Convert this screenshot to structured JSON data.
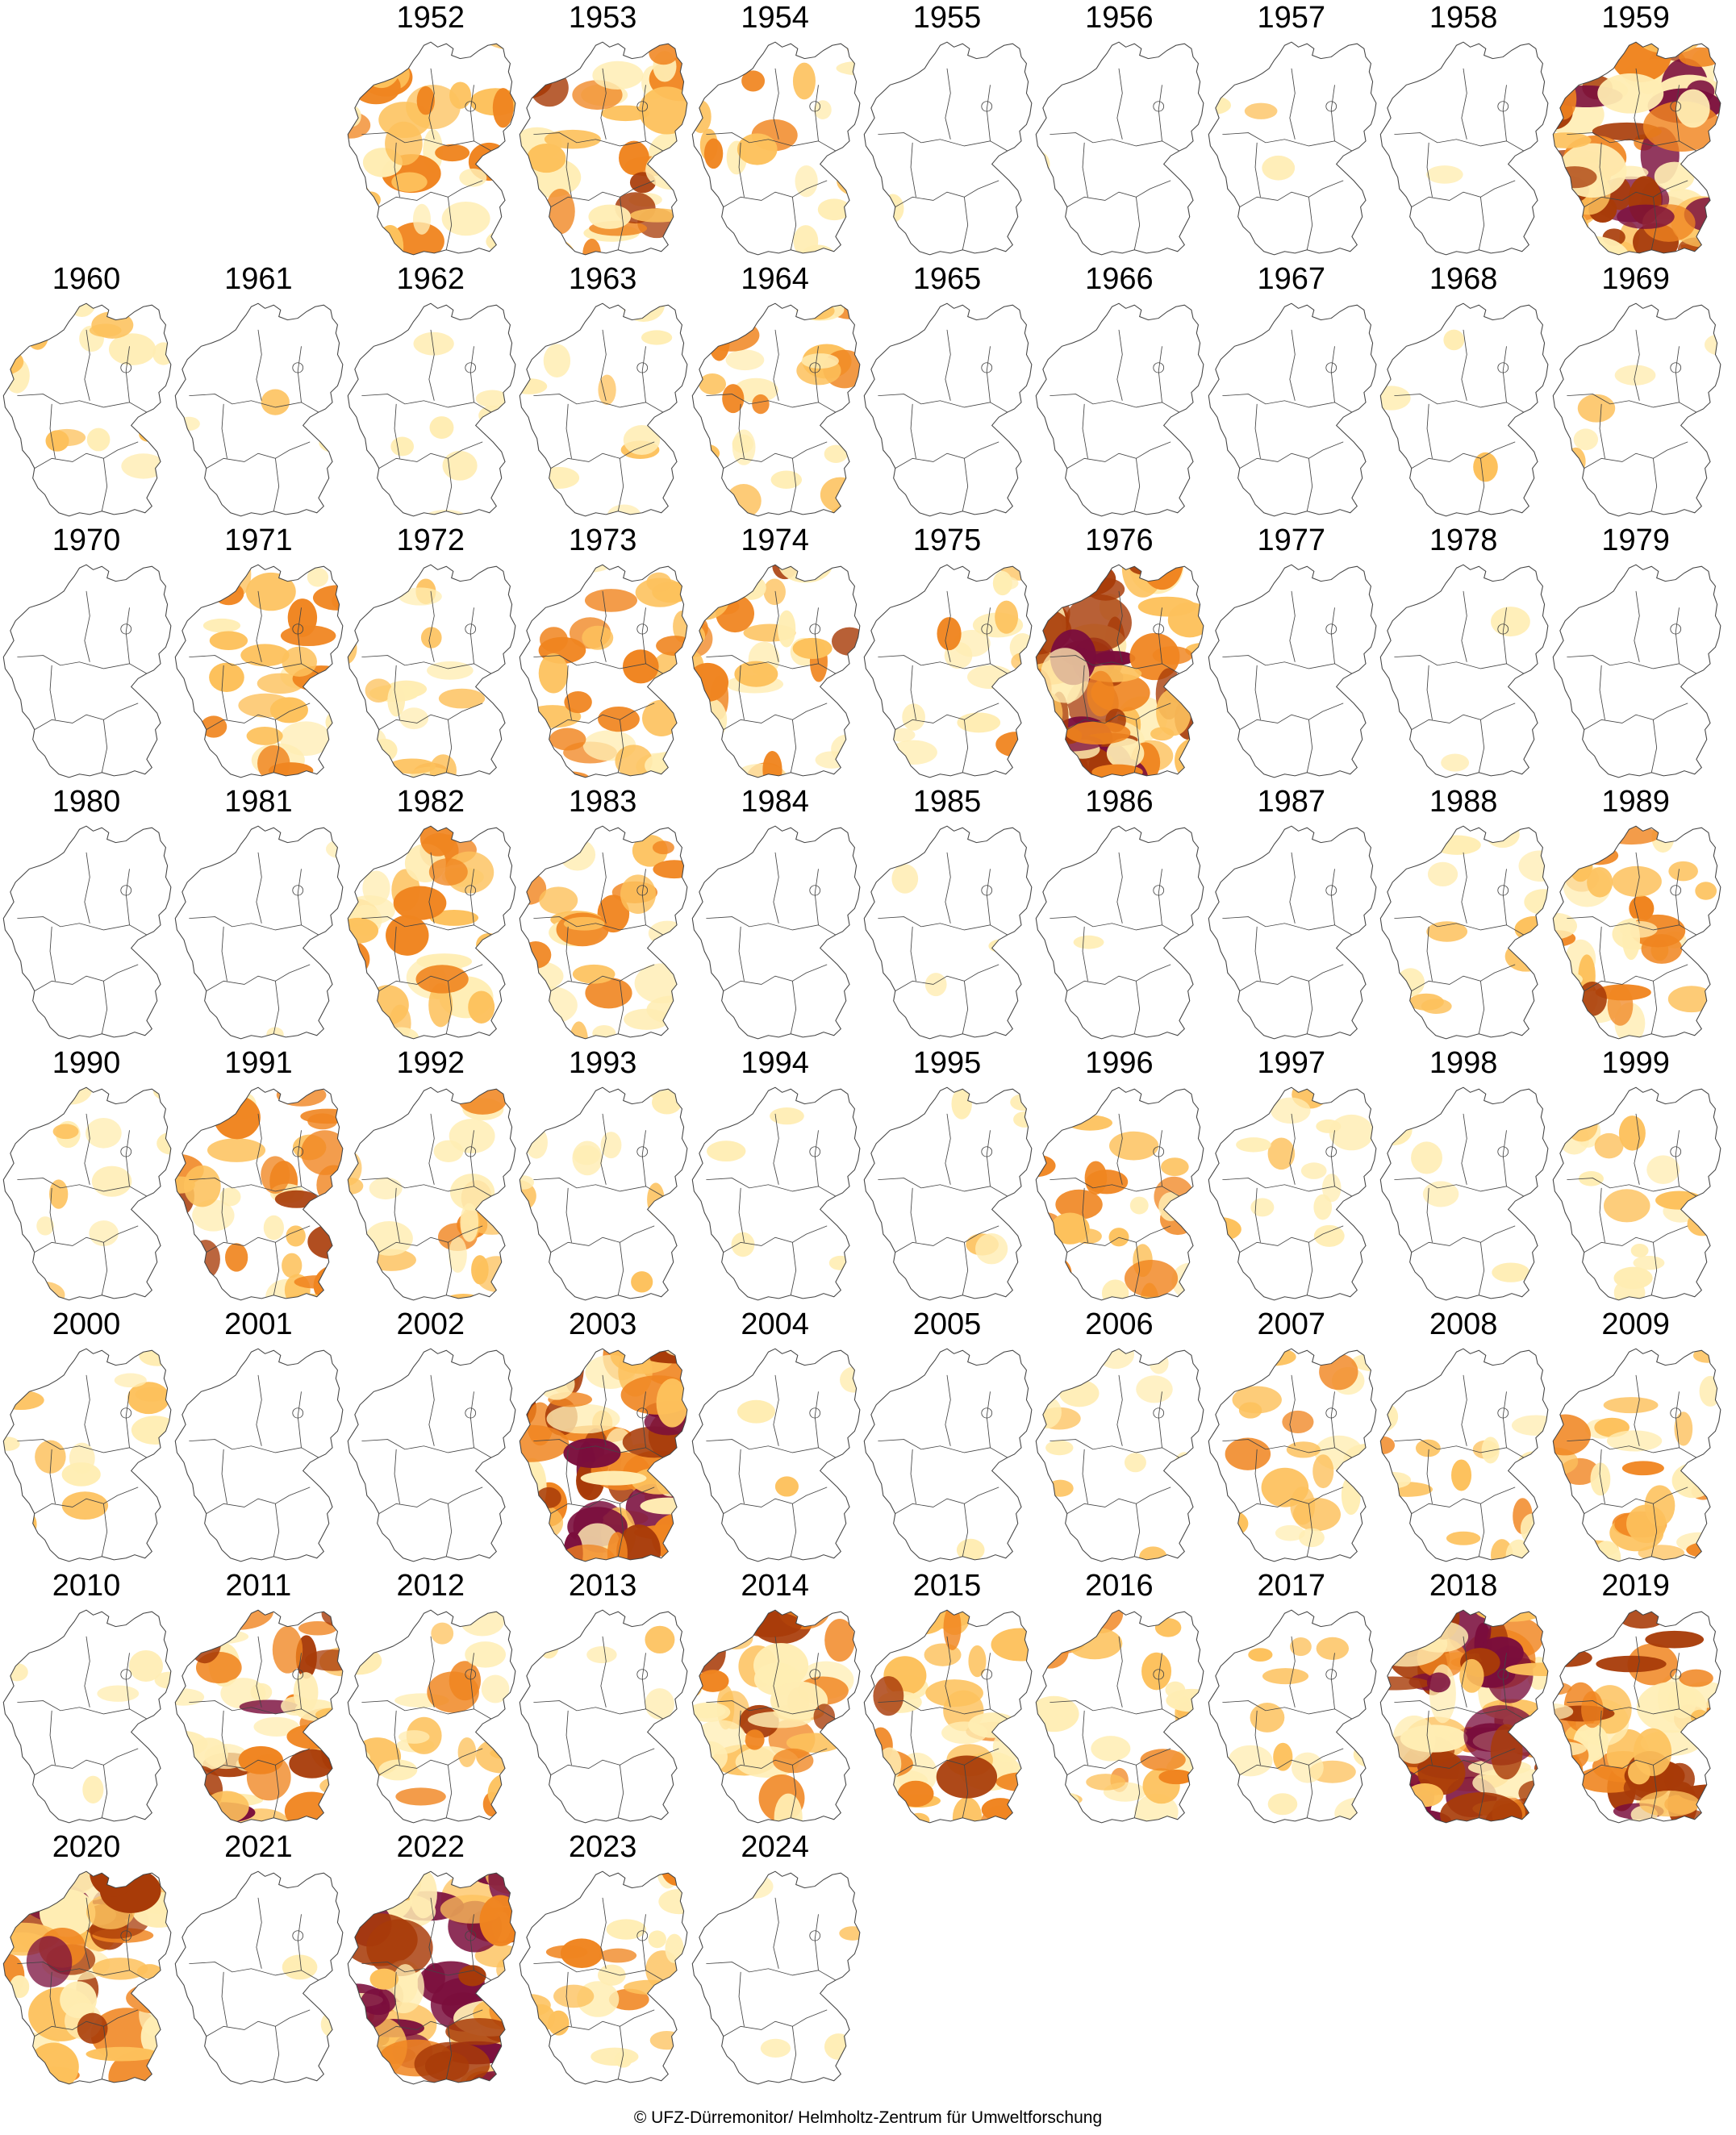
{
  "credit": "© UFZ-Dürremonitor/ Helmholtz-Zentrum für Umweltforschung",
  "legend_colors": {
    "none": "#ffffff",
    "abnormally_dry": "#ffedb3",
    "moderate": "#fdc15c",
    "severe": "#f08520",
    "extreme": "#a83b08",
    "exceptional": "#7a0d3c"
  },
  "region_outline_color": "#444444",
  "maps": [
    {
      "year": "1952",
      "level": 0.45
    },
    {
      "year": "1953",
      "level": 0.55
    },
    {
      "year": "1954",
      "level": 0.25
    },
    {
      "year": "1955",
      "level": 0.02
    },
    {
      "year": "1956",
      "level": 0.03
    },
    {
      "year": "1957",
      "level": 0.05
    },
    {
      "year": "1958",
      "level": 0.02
    },
    {
      "year": "1959",
      "level": 0.85
    },
    {
      "year": "1960",
      "level": 0.2
    },
    {
      "year": "1961",
      "level": 0.06
    },
    {
      "year": "1962",
      "level": 0.1
    },
    {
      "year": "1963",
      "level": 0.15
    },
    {
      "year": "1964",
      "level": 0.4
    },
    {
      "year": "1965",
      "level": 0.0
    },
    {
      "year": "1966",
      "level": 0.0
    },
    {
      "year": "1967",
      "level": 0.01
    },
    {
      "year": "1968",
      "level": 0.04
    },
    {
      "year": "1969",
      "level": 0.1
    },
    {
      "year": "1970",
      "level": 0.01
    },
    {
      "year": "1971",
      "level": 0.4
    },
    {
      "year": "1972",
      "level": 0.25
    },
    {
      "year": "1973",
      "level": 0.4
    },
    {
      "year": "1974",
      "level": 0.45
    },
    {
      "year": "1975",
      "level": 0.25
    },
    {
      "year": "1976",
      "level": 0.9
    },
    {
      "year": "1977",
      "level": 0.0
    },
    {
      "year": "1978",
      "level": 0.03
    },
    {
      "year": "1979",
      "level": 0.02
    },
    {
      "year": "1980",
      "level": 0.0
    },
    {
      "year": "1981",
      "level": 0.03
    },
    {
      "year": "1982",
      "level": 0.45
    },
    {
      "year": "1983",
      "level": 0.35
    },
    {
      "year": "1984",
      "level": 0.0
    },
    {
      "year": "1985",
      "level": 0.06
    },
    {
      "year": "1986",
      "level": 0.02
    },
    {
      "year": "1987",
      "level": 0.0
    },
    {
      "year": "1988",
      "level": 0.2
    },
    {
      "year": "1989",
      "level": 0.45
    },
    {
      "year": "1990",
      "level": 0.2
    },
    {
      "year": "1991",
      "level": 0.5
    },
    {
      "year": "1992",
      "level": 0.3
    },
    {
      "year": "1993",
      "level": 0.15
    },
    {
      "year": "1994",
      "level": 0.05
    },
    {
      "year": "1995",
      "level": 0.08
    },
    {
      "year": "1996",
      "level": 0.35
    },
    {
      "year": "1997",
      "level": 0.2
    },
    {
      "year": "1998",
      "level": 0.08
    },
    {
      "year": "1999",
      "level": 0.25
    },
    {
      "year": "2000",
      "level": 0.2
    },
    {
      "year": "2001",
      "level": 0.0
    },
    {
      "year": "2002",
      "level": 0.0
    },
    {
      "year": "2003",
      "level": 0.85
    },
    {
      "year": "2004",
      "level": 0.04
    },
    {
      "year": "2005",
      "level": 0.02
    },
    {
      "year": "2006",
      "level": 0.15
    },
    {
      "year": "2007",
      "level": 0.3
    },
    {
      "year": "2008",
      "level": 0.25
    },
    {
      "year": "2009",
      "level": 0.35
    },
    {
      "year": "2010",
      "level": 0.08
    },
    {
      "year": "2011",
      "level": 0.7
    },
    {
      "year": "2012",
      "level": 0.35
    },
    {
      "year": "2013",
      "level": 0.06
    },
    {
      "year": "2014",
      "level": 0.55
    },
    {
      "year": "2015",
      "level": 0.5
    },
    {
      "year": "2016",
      "level": 0.35
    },
    {
      "year": "2017",
      "level": 0.2
    },
    {
      "year": "2018",
      "level": 0.95
    },
    {
      "year": "2019",
      "level": 0.7
    },
    {
      "year": "2020",
      "level": 0.75
    },
    {
      "year": "2021",
      "level": 0.04
    },
    {
      "year": "2022",
      "level": 0.85
    },
    {
      "year": "2023",
      "level": 0.3
    },
    {
      "year": "2024",
      "level": 0.1
    }
  ]
}
